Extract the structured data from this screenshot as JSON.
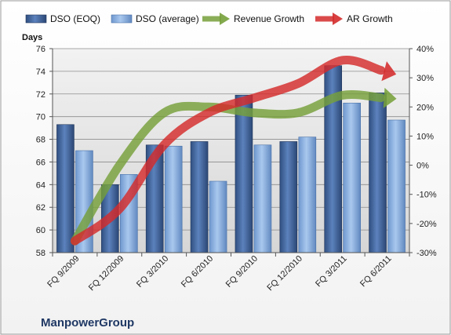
{
  "company": "ManpowerGroup",
  "chart_data": {
    "type": "bar",
    "title": "",
    "xlabel": "",
    "ylabel": "Days",
    "y2label": "",
    "categories": [
      "FQ 9/2009",
      "FQ 12/2009",
      "FQ 3/2010",
      "FQ 6/2010",
      "FQ 9/2010",
      "FQ 12/2010",
      "FQ 3/2011",
      "FQ 6/2011"
    ],
    "ylim": [
      58,
      76
    ],
    "yticks": [
      58,
      60,
      62,
      64,
      66,
      68,
      70,
      72,
      74,
      76
    ],
    "y2lim": [
      -30,
      40
    ],
    "y2ticks": [
      -30,
      -20,
      -10,
      0,
      10,
      20,
      30,
      40
    ],
    "y2tick_labels": [
      "-30%",
      "-20%",
      "-10%",
      "0%",
      "10%",
      "20%",
      "30%",
      "40%"
    ],
    "grid": true,
    "legend_position": "top",
    "series": [
      {
        "name": "DSO (EOQ)",
        "kind": "bar",
        "axis": "left",
        "color": "#4a6fa5",
        "values": [
          69.3,
          64.0,
          67.5,
          67.8,
          71.9,
          67.8,
          74.5,
          72.1
        ]
      },
      {
        "name": "DSO (average)",
        "kind": "bar",
        "axis": "left",
        "color": "#8db3e2",
        "values": [
          67.0,
          64.9,
          67.4,
          64.3,
          67.5,
          68.2,
          71.2,
          69.7
        ]
      },
      {
        "name": "Revenue Growth",
        "kind": "arrow-line",
        "axis": "right",
        "color": "#76a03a",
        "values": [
          -26,
          0,
          18,
          20,
          18,
          18,
          24,
          23
        ]
      },
      {
        "name": "AR Growth",
        "kind": "arrow-line",
        "axis": "right",
        "color": "#d42b2b",
        "values": [
          -26,
          -15,
          7,
          18,
          23,
          28,
          36,
          32
        ]
      }
    ]
  }
}
